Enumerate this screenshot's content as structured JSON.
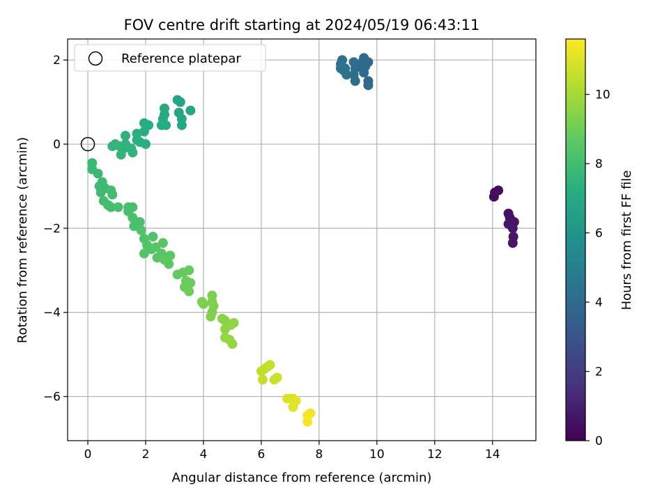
{
  "chart_data": {
    "type": "scatter",
    "title": "FOV centre drift starting at 2024/05/19 06:43:11",
    "xlabel": "Angular distance from reference (arcmin)",
    "ylabel": "Rotation from reference (arcmin)",
    "xlim": [
      -0.7,
      15.5
    ],
    "ylim": [
      -7.05,
      2.5
    ],
    "xticks": [
      0,
      2,
      4,
      6,
      8,
      10,
      12,
      14
    ],
    "yticks": [
      -6,
      -4,
      -2,
      0,
      2
    ],
    "grid": true,
    "legend": {
      "placement": "top-left",
      "entries": [
        "Reference platepar"
      ]
    },
    "reference_point": {
      "x": 0,
      "y": 0,
      "marker": "open-circle",
      "label": "Reference platepar"
    },
    "colorbar": {
      "label": "Hours from first FF file",
      "range": [
        0,
        11.6
      ],
      "ticks": [
        0,
        2,
        4,
        6,
        8,
        10
      ],
      "colormap": "viridis"
    },
    "series": [
      {
        "points": [
          {
            "x": 14.05,
            "y": -1.25,
            "h": 0.3
          },
          {
            "x": 14.08,
            "y": -1.15,
            "h": 0.3
          },
          {
            "x": 14.2,
            "y": -1.1,
            "h": 0.4
          },
          {
            "x": 14.55,
            "y": -1.65,
            "h": 0.5
          },
          {
            "x": 14.6,
            "y": -1.75,
            "h": 0.5
          },
          {
            "x": 14.55,
            "y": -1.9,
            "h": 0.6
          },
          {
            "x": 14.65,
            "y": -1.85,
            "h": 0.6
          },
          {
            "x": 14.75,
            "y": -1.85,
            "h": 0.6
          },
          {
            "x": 14.7,
            "y": -2.0,
            "h": 0.7
          },
          {
            "x": 14.72,
            "y": -2.2,
            "h": 0.7
          },
          {
            "x": 14.7,
            "y": -2.35,
            "h": 0.7
          },
          {
            "x": 8.75,
            "y": 1.9,
            "h": 4.3
          },
          {
            "x": 8.8,
            "y": 2.0,
            "h": 4.3
          },
          {
            "x": 8.75,
            "y": 1.8,
            "h": 4.4
          },
          {
            "x": 8.9,
            "y": 1.8,
            "h": 4.4
          },
          {
            "x": 8.95,
            "y": 1.65,
            "h": 4.4
          },
          {
            "x": 8.85,
            "y": 1.75,
            "h": 4.3
          },
          {
            "x": 9.2,
            "y": 1.95,
            "h": 4.2
          },
          {
            "x": 9.25,
            "y": 1.8,
            "h": 4.2
          },
          {
            "x": 9.2,
            "y": 1.65,
            "h": 4.2
          },
          {
            "x": 9.25,
            "y": 1.5,
            "h": 4.1
          },
          {
            "x": 9.4,
            "y": 1.85,
            "h": 4.1
          },
          {
            "x": 9.55,
            "y": 2.05,
            "h": 4.1
          },
          {
            "x": 9.5,
            "y": 1.95,
            "h": 4.0
          },
          {
            "x": 9.6,
            "y": 1.85,
            "h": 4.0
          },
          {
            "x": 9.7,
            "y": 1.95,
            "h": 4.0
          },
          {
            "x": 9.55,
            "y": 1.7,
            "h": 4.0
          },
          {
            "x": 9.7,
            "y": 1.5,
            "h": 3.9
          },
          {
            "x": 9.7,
            "y": 1.4,
            "h": 3.9
          },
          {
            "x": 3.1,
            "y": 1.05,
            "h": 6.8
          },
          {
            "x": 3.2,
            "y": 1.0,
            "h": 6.8
          },
          {
            "x": 3.15,
            "y": 0.75,
            "h": 6.8
          },
          {
            "x": 3.25,
            "y": 0.6,
            "h": 6.9
          },
          {
            "x": 3.25,
            "y": 0.45,
            "h": 6.9
          },
          {
            "x": 3.55,
            "y": 0.8,
            "h": 6.9
          },
          {
            "x": 2.65,
            "y": 0.85,
            "h": 7.0
          },
          {
            "x": 2.65,
            "y": 0.7,
            "h": 7.0
          },
          {
            "x": 2.6,
            "y": 0.6,
            "h": 7.0
          },
          {
            "x": 2.55,
            "y": 0.45,
            "h": 7.1
          },
          {
            "x": 2.7,
            "y": 0.45,
            "h": 7.1
          },
          {
            "x": 1.95,
            "y": 0.5,
            "h": 7.2
          },
          {
            "x": 2.1,
            "y": 0.45,
            "h": 7.2
          },
          {
            "x": 1.95,
            "y": 0.3,
            "h": 7.2
          },
          {
            "x": 1.7,
            "y": 0.25,
            "h": 7.3
          },
          {
            "x": 1.7,
            "y": 0.1,
            "h": 7.3
          },
          {
            "x": 1.8,
            "y": 0.05,
            "h": 7.3
          },
          {
            "x": 2.0,
            "y": 0.0,
            "h": 7.3
          },
          {
            "x": 1.3,
            "y": 0.2,
            "h": 7.4
          },
          {
            "x": 1.3,
            "y": 0.0,
            "h": 7.4
          },
          {
            "x": 1.25,
            "y": -0.1,
            "h": 7.4
          },
          {
            "x": 1.1,
            "y": -0.05,
            "h": 7.5
          },
          {
            "x": 1.15,
            "y": -0.25,
            "h": 7.5
          },
          {
            "x": 1.5,
            "y": -0.1,
            "h": 7.5
          },
          {
            "x": 1.55,
            "y": -0.2,
            "h": 7.5
          },
          {
            "x": 0.85,
            "y": -0.05,
            "h": 7.6
          },
          {
            "x": 0.95,
            "y": 0.0,
            "h": 7.6
          },
          {
            "x": 0.15,
            "y": -0.45,
            "h": 7.8
          },
          {
            "x": 0.15,
            "y": -0.6,
            "h": 7.8
          },
          {
            "x": 0.35,
            "y": -0.7,
            "h": 7.8
          },
          {
            "x": 0.5,
            "y": -0.9,
            "h": 7.9
          },
          {
            "x": 0.4,
            "y": -1.0,
            "h": 7.9
          },
          {
            "x": 0.6,
            "y": -1.05,
            "h": 7.9
          },
          {
            "x": 0.45,
            "y": -1.15,
            "h": 7.9
          },
          {
            "x": 0.8,
            "y": -1.1,
            "h": 8.0
          },
          {
            "x": 0.85,
            "y": -1.2,
            "h": 8.0
          },
          {
            "x": 0.55,
            "y": -1.35,
            "h": 8.0
          },
          {
            "x": 0.7,
            "y": -1.45,
            "h": 8.0
          },
          {
            "x": 0.8,
            "y": -1.5,
            "h": 8.0
          },
          {
            "x": 1.05,
            "y": -1.5,
            "h": 8.1
          },
          {
            "x": 1.4,
            "y": -1.5,
            "h": 8.1
          },
          {
            "x": 1.4,
            "y": -1.6,
            "h": 8.1
          },
          {
            "x": 1.55,
            "y": -1.5,
            "h": 8.1
          },
          {
            "x": 1.55,
            "y": -1.75,
            "h": 8.2
          },
          {
            "x": 1.6,
            "y": -1.95,
            "h": 8.2
          },
          {
            "x": 1.8,
            "y": -1.85,
            "h": 8.2
          },
          {
            "x": 1.85,
            "y": -2.05,
            "h": 8.3
          },
          {
            "x": 1.95,
            "y": -2.25,
            "h": 8.3
          },
          {
            "x": 2.25,
            "y": -2.2,
            "h": 8.3
          },
          {
            "x": 2.05,
            "y": -2.4,
            "h": 8.4
          },
          {
            "x": 1.95,
            "y": -2.6,
            "h": 8.4
          },
          {
            "x": 2.2,
            "y": -2.5,
            "h": 8.4
          },
          {
            "x": 2.35,
            "y": -2.45,
            "h": 8.5
          },
          {
            "x": 2.6,
            "y": -2.35,
            "h": 8.5
          },
          {
            "x": 2.55,
            "y": -2.6,
            "h": 8.5
          },
          {
            "x": 2.4,
            "y": -2.7,
            "h": 8.5
          },
          {
            "x": 2.65,
            "y": -2.75,
            "h": 8.6
          },
          {
            "x": 2.8,
            "y": -2.85,
            "h": 8.6
          },
          {
            "x": 2.85,
            "y": -2.65,
            "h": 8.6
          },
          {
            "x": 3.1,
            "y": -3.1,
            "h": 8.8
          },
          {
            "x": 3.3,
            "y": -3.05,
            "h": 8.8
          },
          {
            "x": 3.5,
            "y": -3.0,
            "h": 8.8
          },
          {
            "x": 3.4,
            "y": -3.25,
            "h": 8.9
          },
          {
            "x": 3.55,
            "y": -3.3,
            "h": 8.9
          },
          {
            "x": 3.35,
            "y": -3.4,
            "h": 8.9
          },
          {
            "x": 3.5,
            "y": -3.5,
            "h": 9.0
          },
          {
            "x": 3.95,
            "y": -3.75,
            "h": 9.2
          },
          {
            "x": 4.0,
            "y": -3.8,
            "h": 9.2
          },
          {
            "x": 4.3,
            "y": -3.6,
            "h": 9.2
          },
          {
            "x": 4.3,
            "y": -3.75,
            "h": 9.3
          },
          {
            "x": 4.35,
            "y": -3.85,
            "h": 9.3
          },
          {
            "x": 4.3,
            "y": -4.0,
            "h": 9.3
          },
          {
            "x": 4.25,
            "y": -4.1,
            "h": 9.3
          },
          {
            "x": 4.65,
            "y": -4.15,
            "h": 9.5
          },
          {
            "x": 4.75,
            "y": -4.2,
            "h": 9.5
          },
          {
            "x": 4.85,
            "y": -4.3,
            "h": 9.5
          },
          {
            "x": 4.75,
            "y": -4.4,
            "h": 9.6
          },
          {
            "x": 4.95,
            "y": -4.3,
            "h": 9.6
          },
          {
            "x": 5.05,
            "y": -4.25,
            "h": 9.6
          },
          {
            "x": 4.75,
            "y": -4.6,
            "h": 9.7
          },
          {
            "x": 4.9,
            "y": -4.65,
            "h": 9.7
          },
          {
            "x": 5.0,
            "y": -4.75,
            "h": 9.7
          },
          {
            "x": 6.0,
            "y": -5.4,
            "h": 10.5
          },
          {
            "x": 6.1,
            "y": -5.35,
            "h": 10.5
          },
          {
            "x": 6.2,
            "y": -5.3,
            "h": 10.5
          },
          {
            "x": 6.3,
            "y": -5.25,
            "h": 10.6
          },
          {
            "x": 6.05,
            "y": -5.6,
            "h": 10.6
          },
          {
            "x": 6.45,
            "y": -5.6,
            "h": 10.7
          },
          {
            "x": 6.55,
            "y": -5.55,
            "h": 10.7
          },
          {
            "x": 6.9,
            "y": -6.05,
            "h": 11.0
          },
          {
            "x": 7.0,
            "y": -6.05,
            "h": 11.0
          },
          {
            "x": 7.1,
            "y": -6.05,
            "h": 11.0
          },
          {
            "x": 7.2,
            "y": -6.1,
            "h": 11.1
          },
          {
            "x": 7.1,
            "y": -6.25,
            "h": 11.1
          },
          {
            "x": 7.6,
            "y": -6.45,
            "h": 11.4
          },
          {
            "x": 7.7,
            "y": -6.4,
            "h": 11.4
          },
          {
            "x": 7.6,
            "y": -6.6,
            "h": 11.5
          }
        ]
      }
    ]
  }
}
